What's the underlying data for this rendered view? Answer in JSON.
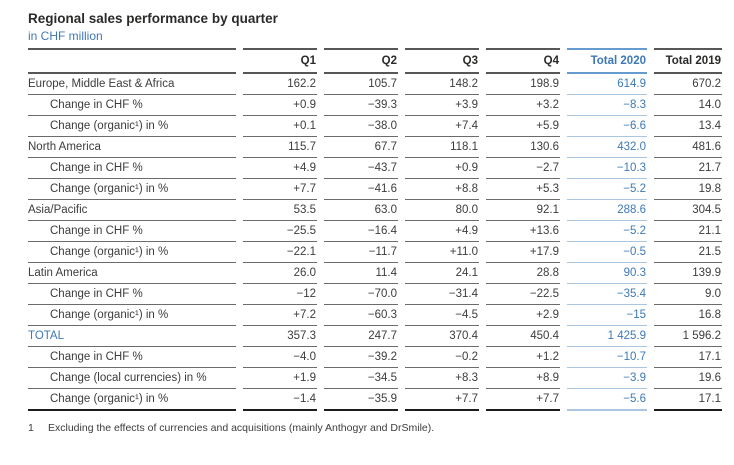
{
  "header": {
    "title": "Regional sales performance by quarter",
    "subtitle": "in CHF million"
  },
  "colors": {
    "accent_blue_text": "#3e79b5",
    "accent_blue_rule": "#a9c6e2",
    "accent_blue_rule_strong": "#659bce",
    "text_dark": "#3c3c3b",
    "rule_dark": "#575756",
    "rule_black": "#1d1d1b"
  },
  "table": {
    "columns": [
      "",
      "Q1",
      "Q2",
      "Q3",
      "Q4",
      "Total 2020",
      "Total 2019"
    ],
    "highlighted_column": "Total 2020",
    "rows": [
      {
        "type": "region",
        "label": "Europe, Middle East & Africa",
        "values": [
          "162.2",
          "105.7",
          "148.2",
          "198.9",
          "614.9",
          "670.2"
        ]
      },
      {
        "type": "sub",
        "label": "Change in CHF %",
        "values": [
          "+0.9",
          "−39.3",
          "+3.9",
          "+3.2",
          "−8.3",
          "14.0"
        ]
      },
      {
        "type": "sub",
        "label": "Change (organic¹) in %",
        "values": [
          "+0.1",
          "−38.0",
          "+7.4",
          "+5.9",
          "−6.6",
          "13.4"
        ]
      },
      {
        "type": "region",
        "label": "North America",
        "values": [
          "115.7",
          "67.7",
          "118.1",
          "130.6",
          "432.0",
          "481.6"
        ]
      },
      {
        "type": "sub",
        "label": "Change in CHF %",
        "values": [
          "+4.9",
          "−43.7",
          "+0.9",
          "−2.7",
          "−10.3",
          "21.7"
        ]
      },
      {
        "type": "sub",
        "label": "Change (organic¹) in %",
        "values": [
          "+7.7",
          "−41.6",
          "+8.8",
          "+5.3",
          "−5.2",
          "19.8"
        ]
      },
      {
        "type": "region",
        "label": "Asia/Pacific",
        "values": [
          "53.5",
          "63.0",
          "80.0",
          "92.1",
          "288.6",
          "304.5"
        ]
      },
      {
        "type": "sub",
        "label": "Change in CHF %",
        "values": [
          "−25.5",
          "−16.4",
          "+4.9",
          "+13.6",
          "−5.2",
          "21.1"
        ]
      },
      {
        "type": "sub",
        "label": "Change (organic¹) in %",
        "values": [
          "−22.1",
          "−11.7",
          "+11.0",
          "+17.9",
          "−0.5",
          "21.5"
        ]
      },
      {
        "type": "region",
        "label": "Latin America",
        "values": [
          "26.0",
          "11.4",
          "24.1",
          "28.8",
          "90.3",
          "139.9"
        ]
      },
      {
        "type": "sub",
        "label": "Change in CHF %",
        "values": [
          "−12",
          "−70.0",
          "−31.4",
          "−22.5",
          "−35.4",
          "9.0"
        ]
      },
      {
        "type": "sub",
        "label": "Change (organic¹) in %",
        "values": [
          "+7.2",
          "−60.3",
          "−4.5",
          "+2.9",
          "−15",
          "16.8"
        ]
      },
      {
        "type": "total",
        "label": "TOTAL",
        "values": [
          "357.3",
          "247.7",
          "370.4",
          "450.4",
          "1 425.9",
          "1 596.2"
        ]
      },
      {
        "type": "sub",
        "label": "Change in CHF %",
        "values": [
          "−4.0",
          "−39.2",
          "−0.2",
          "+1.2",
          "−10.7",
          "17.1"
        ]
      },
      {
        "type": "sub",
        "label": "Change (local currencies) in %",
        "values": [
          "+1.9",
          "−34.5",
          "+8.3",
          "+8.9",
          "−3.9",
          "19.6"
        ]
      },
      {
        "type": "sub",
        "label": "Change (organic¹) in %",
        "values": [
          "−1.4",
          "−35.9",
          "+7.7",
          "+7.7",
          "−5.6",
          "17.1"
        ]
      }
    ]
  },
  "footnote": {
    "marker": "1",
    "text": "Excluding the effects of currencies and acquisitions (mainly Anthogyr and DrSmile)."
  }
}
